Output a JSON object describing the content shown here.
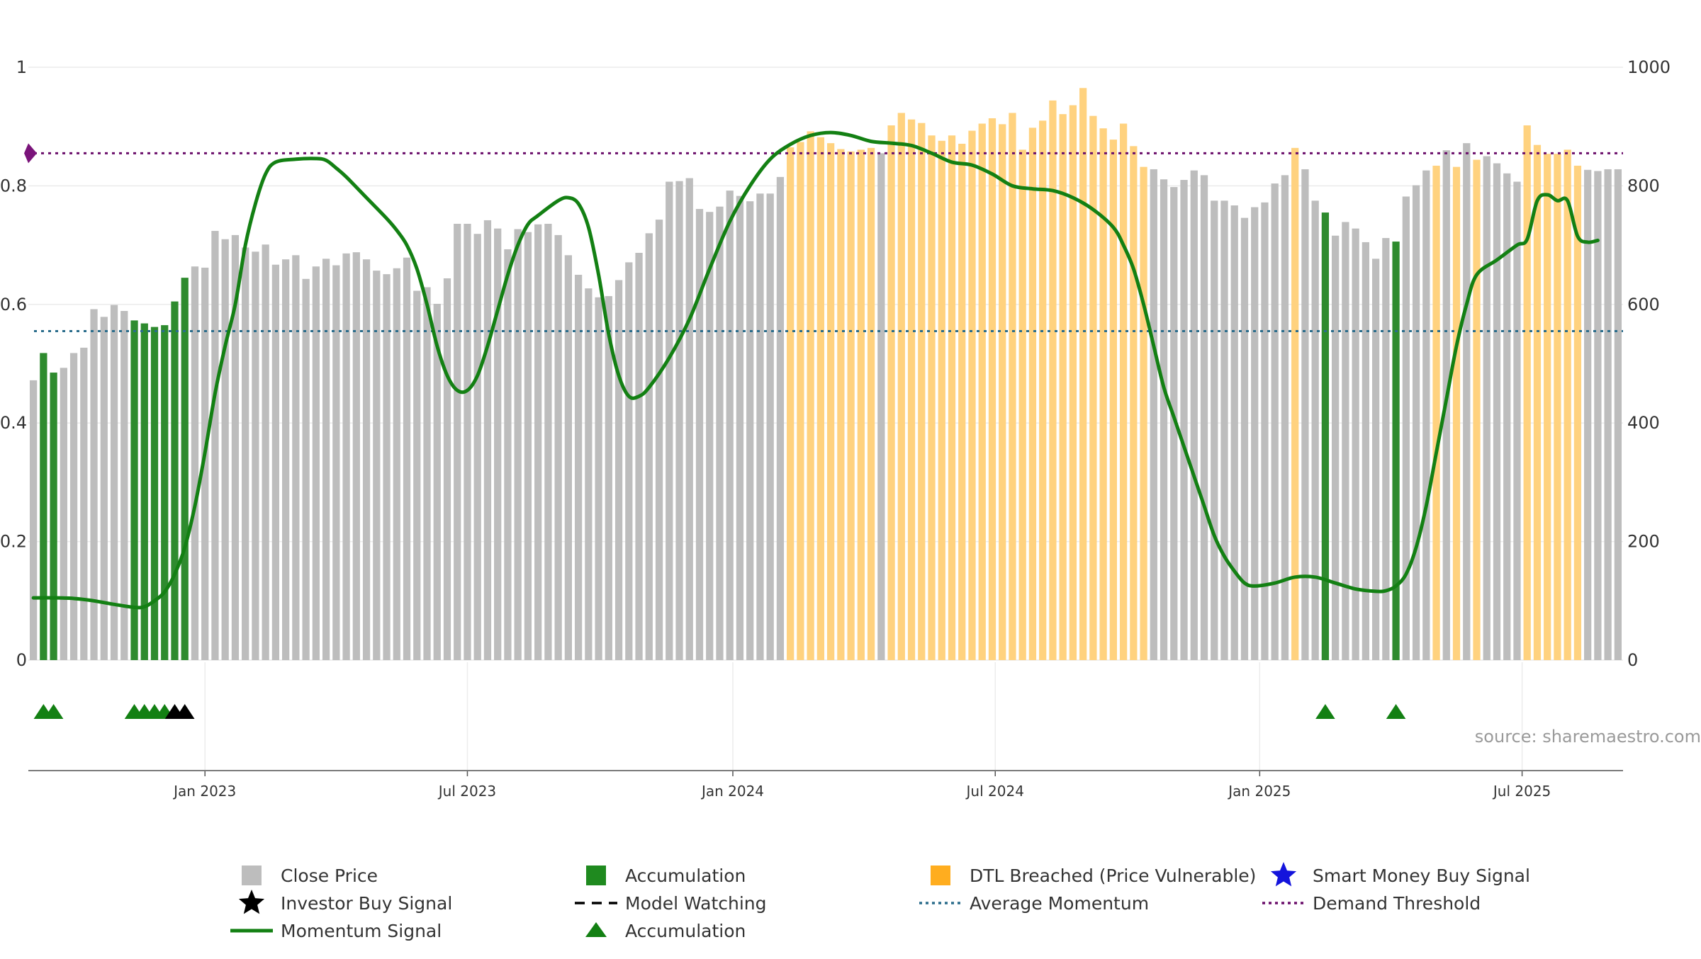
{
  "chart_data": {
    "type": "bar",
    "source_label": "source: sharemaestro.com",
    "left_axis": {
      "range": [
        0,
        1
      ],
      "ticks": [
        "0",
        "0.2",
        "0.4",
        "0.6",
        "0.8",
        "1"
      ],
      "tick_values": [
        0,
        0.2,
        0.4,
        0.6,
        0.8,
        1
      ]
    },
    "right_axis": {
      "range": [
        0,
        1000
      ],
      "ticks": [
        "0",
        "200",
        "400",
        "600",
        "800",
        "1000"
      ],
      "tick_values": [
        0,
        200,
        400,
        600,
        800,
        1000
      ]
    },
    "x_axis": {
      "labels": [
        "Jan 2023",
        "Jul 2023",
        "Jan 2024",
        "Jul 2024",
        "Jan 2025",
        "Jul 2025"
      ],
      "label_positions_week_index": [
        17.5,
        43.5,
        69.8,
        95.8,
        122,
        148
      ]
    },
    "colors": {
      "close": "#bdbdbd",
      "accumulation": "#2e8b2e",
      "dtl": "#ffd27f",
      "momentum": "#138013",
      "average": "#2b6d8c",
      "threshold": "#6b0f6b",
      "investor_star": "#000000",
      "smart_star": "#1414dc",
      "marker_accum": "#138013",
      "marker_investor": "#000000"
    },
    "series": [
      {
        "name": "Close Price",
        "axis": "right",
        "values": [
          472,
          518,
          485,
          493,
          518,
          527,
          592,
          579,
          599,
          589,
          573,
          568,
          562,
          565,
          605,
          645,
          664,
          662,
          724,
          710,
          717,
          696,
          689,
          701,
          667,
          676,
          683,
          643,
          664,
          677,
          666,
          686,
          688,
          676,
          657,
          651,
          661,
          679,
          623,
          629,
          601,
          644,
          736,
          736,
          719,
          742,
          728,
          693,
          727,
          722,
          735,
          736,
          717,
          683,
          650,
          627,
          612,
          614,
          641,
          671,
          687,
          720,
          743,
          807,
          808,
          813,
          761,
          756,
          765,
          792,
          783,
          774,
          787,
          787,
          815,
          865,
          874,
          892,
          882,
          872,
          862,
          858,
          861,
          864,
          855,
          902,
          923,
          912,
          906,
          885,
          876,
          885,
          871,
          893,
          905,
          914,
          904,
          923,
          861,
          898,
          910,
          944,
          921,
          936,
          965,
          918,
          897,
          878,
          905,
          867,
          832,
          828,
          811,
          798,
          810,
          826,
          818,
          775,
          775,
          767,
          746,
          764,
          772,
          804,
          818,
          864,
          828,
          775,
          755,
          716,
          739,
          728,
          705,
          677,
          712,
          706,
          782,
          801,
          826,
          834,
          860,
          832,
          872,
          844,
          850,
          838,
          821,
          807,
          902,
          869,
          854,
          854,
          861,
          834,
          827,
          825,
          828,
          828
        ]
      },
      {
        "name": "Accumulation",
        "week_indices": [
          1,
          2,
          10,
          11,
          12,
          13,
          14,
          15,
          128,
          135
        ]
      },
      {
        "name": "DTL Breached (Price Vulnerable)",
        "week_indices": [
          75,
          76,
          77,
          78,
          79,
          80,
          81,
          82,
          83,
          85,
          86,
          87,
          88,
          89,
          90,
          91,
          92,
          93,
          94,
          95,
          96,
          97,
          98,
          99,
          100,
          101,
          102,
          103,
          104,
          105,
          106,
          107,
          108,
          109,
          110,
          125,
          139,
          141,
          143,
          148,
          149,
          150,
          151,
          152,
          153
        ]
      },
      {
        "name": "Momentum Signal",
        "axis": "left",
        "points": [
          [
            0,
            0.105
          ],
          [
            2,
            0.105
          ],
          [
            4,
            0.104
          ],
          [
            6,
            0.1
          ],
          [
            8,
            0.094
          ],
          [
            10,
            0.089
          ],
          [
            11,
            0.09
          ],
          [
            12,
            0.1
          ],
          [
            13,
            0.115
          ],
          [
            14,
            0.145
          ],
          [
            15,
            0.19
          ],
          [
            16,
            0.26
          ],
          [
            17,
            0.35
          ],
          [
            18,
            0.45
          ],
          [
            19,
            0.53
          ],
          [
            20,
            0.6
          ],
          [
            21,
            0.7
          ],
          [
            22,
            0.77
          ],
          [
            23,
            0.82
          ],
          [
            24,
            0.84
          ],
          [
            26,
            0.845
          ],
          [
            28,
            0.846
          ],
          [
            29,
            0.843
          ],
          [
            30,
            0.83
          ],
          [
            31,
            0.815
          ],
          [
            33,
            0.78
          ],
          [
            35,
            0.745
          ],
          [
            36,
            0.725
          ],
          [
            37,
            0.7
          ],
          [
            38,
            0.66
          ],
          [
            39,
            0.6
          ],
          [
            40,
            0.53
          ],
          [
            41,
            0.48
          ],
          [
            42,
            0.455
          ],
          [
            43,
            0.455
          ],
          [
            44,
            0.48
          ],
          [
            45,
            0.53
          ],
          [
            46,
            0.59
          ],
          [
            47,
            0.65
          ],
          [
            48,
            0.7
          ],
          [
            49,
            0.735
          ],
          [
            50,
            0.75
          ],
          [
            52,
            0.775
          ],
          [
            53,
            0.78
          ],
          [
            54,
            0.77
          ],
          [
            55,
            0.73
          ],
          [
            56,
            0.65
          ],
          [
            57,
            0.55
          ],
          [
            58,
            0.48
          ],
          [
            59,
            0.445
          ],
          [
            60,
            0.445
          ],
          [
            61,
            0.46
          ],
          [
            63,
            0.51
          ],
          [
            65,
            0.575
          ],
          [
            67,
            0.66
          ],
          [
            69,
            0.74
          ],
          [
            71,
            0.8
          ],
          [
            73,
            0.845
          ],
          [
            75,
            0.87
          ],
          [
            77,
            0.885
          ],
          [
            79,
            0.89
          ],
          [
            81,
            0.885
          ],
          [
            83,
            0.875
          ],
          [
            85,
            0.872
          ],
          [
            87,
            0.868
          ],
          [
            89,
            0.855
          ],
          [
            91,
            0.84
          ],
          [
            93,
            0.835
          ],
          [
            95,
            0.82
          ],
          [
            97,
            0.8
          ],
          [
            99,
            0.795
          ],
          [
            101,
            0.792
          ],
          [
            103,
            0.78
          ],
          [
            105,
            0.76
          ],
          [
            107,
            0.73
          ],
          [
            108,
            0.7
          ],
          [
            109,
            0.66
          ],
          [
            110,
            0.6
          ],
          [
            111,
            0.53
          ],
          [
            112,
            0.46
          ],
          [
            113,
            0.41
          ],
          [
            114,
            0.36
          ],
          [
            115,
            0.31
          ],
          [
            116,
            0.26
          ],
          [
            117,
            0.21
          ],
          [
            118,
            0.175
          ],
          [
            119,
            0.15
          ],
          [
            120,
            0.13
          ],
          [
            121,
            0.125
          ],
          [
            123,
            0.13
          ],
          [
            125,
            0.14
          ],
          [
            127,
            0.14
          ],
          [
            129,
            0.13
          ],
          [
            131,
            0.12
          ],
          [
            133,
            0.116
          ],
          [
            134,
            0.117
          ],
          [
            135,
            0.125
          ],
          [
            136,
            0.145
          ],
          [
            137,
            0.19
          ],
          [
            138,
            0.26
          ],
          [
            139,
            0.35
          ],
          [
            140,
            0.44
          ],
          [
            141,
            0.53
          ],
          [
            142,
            0.6
          ],
          [
            143,
            0.65
          ],
          [
            145,
            0.675
          ],
          [
            147,
            0.7
          ],
          [
            148,
            0.71
          ],
          [
            149,
            0.775
          ],
          [
            150,
            0.785
          ],
          [
            151,
            0.775
          ],
          [
            152,
            0.775
          ],
          [
            153,
            0.715
          ],
          [
            154,
            0.705
          ],
          [
            155,
            0.708
          ]
        ]
      },
      {
        "name": "Average Momentum",
        "axis": "left",
        "value": 0.555
      },
      {
        "name": "Demand Threshold",
        "axis": "left",
        "value": 0.855
      },
      {
        "name": "Accumulation markers",
        "week_indices": [
          1,
          2,
          10,
          11,
          12,
          13,
          128,
          135
        ]
      },
      {
        "name": "Investor Buy Signal markers",
        "week_indices": [
          14,
          15
        ]
      }
    ],
    "legend": [
      {
        "label": "Close Price",
        "symbol": "square-gray"
      },
      {
        "label": "Accumulation",
        "symbol": "square-green"
      },
      {
        "label": "DTL Breached (Price Vulnerable)",
        "symbol": "square-orange"
      },
      {
        "label": "Smart Money Buy Signal",
        "symbol": "star-blue"
      },
      {
        "label": "Investor Buy Signal",
        "symbol": "star-black"
      },
      {
        "label": "Model Watching",
        "symbol": "dash-black"
      },
      {
        "label": "Average Momentum",
        "symbol": "dot-teal"
      },
      {
        "label": "Demand Threshold",
        "symbol": "dot-purple"
      },
      {
        "label": "Momentum Signal",
        "symbol": "line-green"
      },
      {
        "label": "Accumulation",
        "symbol": "triangle-green"
      }
    ]
  }
}
